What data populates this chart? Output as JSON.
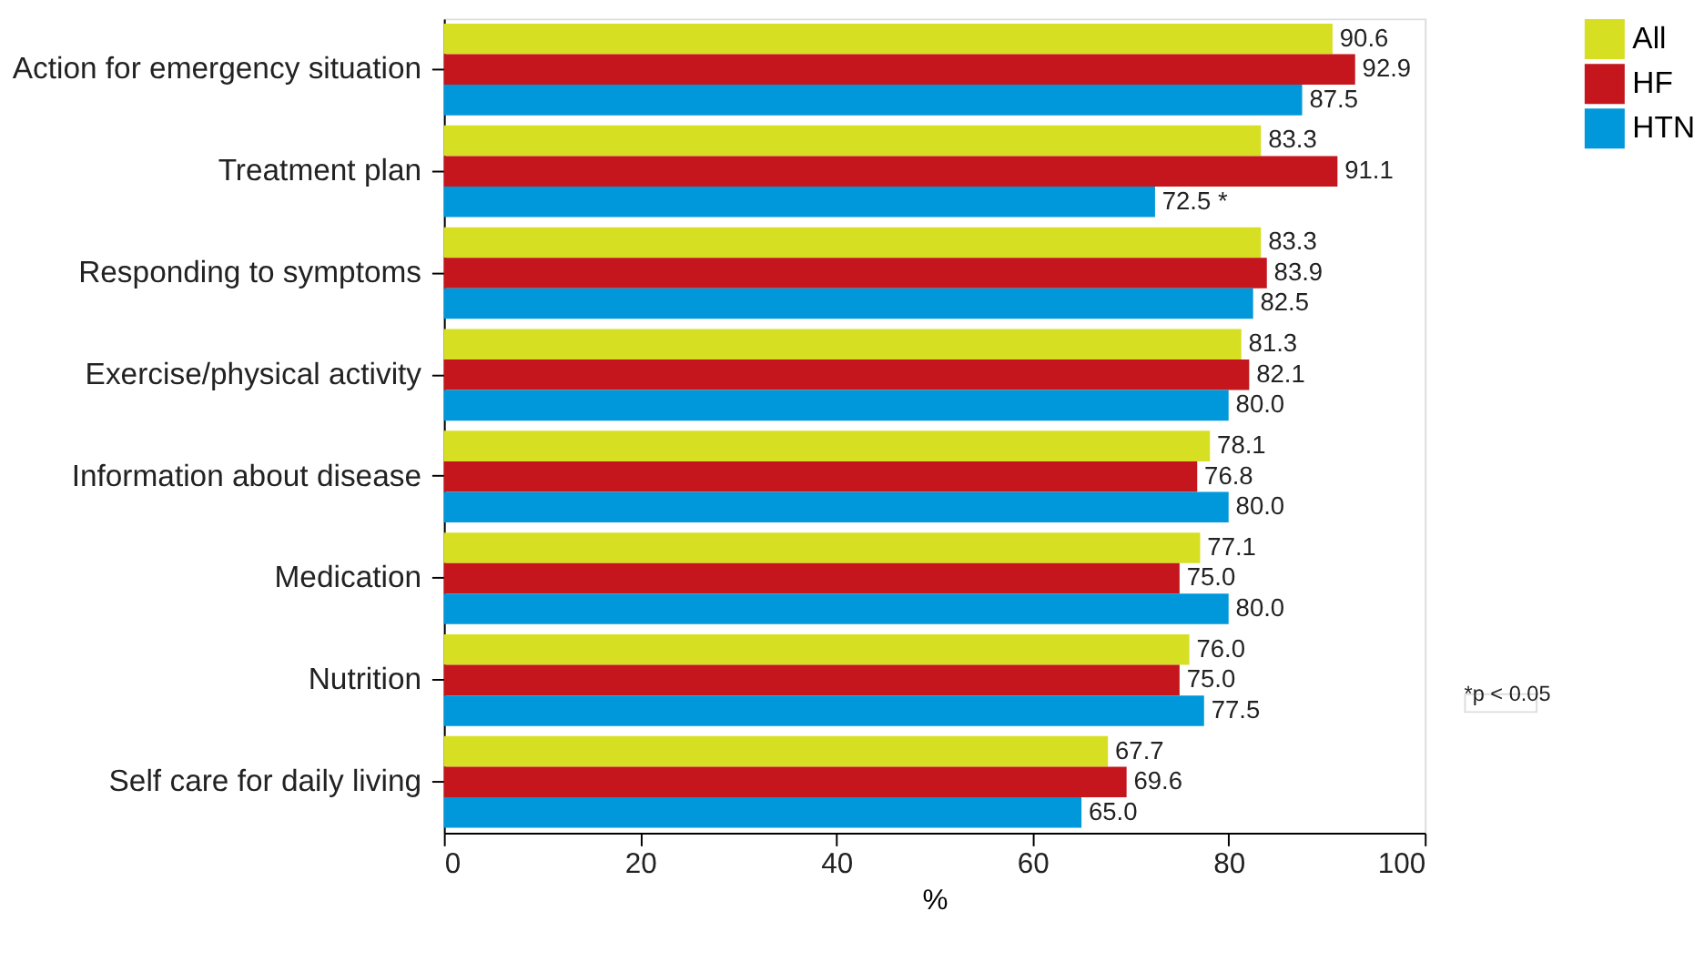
{
  "chart_data": {
    "type": "bar",
    "orientation": "horizontal",
    "xlabel": "%",
    "categories": [
      "Action for emergency situation",
      "Treatment plan",
      "Responding to symptoms",
      "Exercise/physical activity",
      "Information about disease",
      "Medication",
      "Nutrition",
      "Self care for daily living"
    ],
    "series": [
      {
        "name": "All",
        "color": "#d7df23",
        "values": [
          90.6,
          83.3,
          83.3,
          81.3,
          78.1,
          77.1,
          76.0,
          67.7
        ],
        "value_labels": [
          "90.6",
          "83.3",
          "83.3",
          "81.3",
          "78.1",
          "77.1",
          "76.0",
          "67.7"
        ]
      },
      {
        "name": "HF",
        "color": "#c4161c",
        "values": [
          92.9,
          91.1,
          83.9,
          82.1,
          76.8,
          75.0,
          75.0,
          69.6
        ],
        "value_labels": [
          "92.9",
          "91.1",
          "83.9",
          "82.1",
          "76.8",
          "75.0",
          "75.0",
          "69.6"
        ]
      },
      {
        "name": "HTN",
        "color": "#0098da",
        "values": [
          87.5,
          72.5,
          82.5,
          80.0,
          80.0,
          80.0,
          77.5,
          65.0
        ],
        "value_labels": [
          "87.5",
          "72.5  *",
          "82.5",
          "80.0",
          "80.0",
          "80.0",
          "77.5",
          "65.0"
        ]
      }
    ],
    "xlim": [
      0,
      100
    ],
    "xticks": [
      0,
      20,
      40,
      60,
      80,
      100
    ],
    "grid": false,
    "legend": "right",
    "annotations": [
      "*p < 0.05"
    ]
  }
}
